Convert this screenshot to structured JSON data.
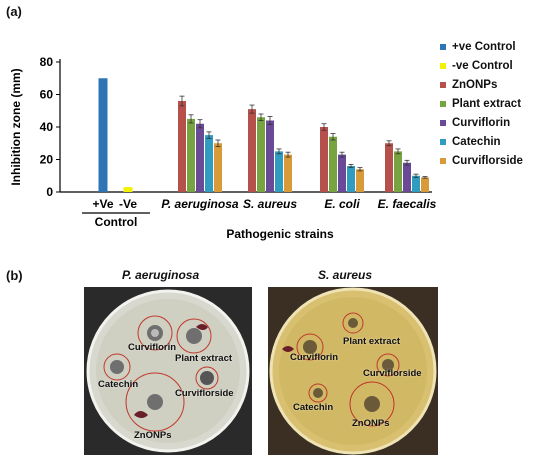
{
  "panel_a_label": "(a)",
  "panel_b_label": "(b)",
  "chart_data": {
    "type": "bar",
    "ylabel": "Inhibition zone (mm)",
    "xlabel": "Pathogenic strains",
    "ylim": [
      0,
      80
    ],
    "yticks": [
      0,
      20,
      40,
      60,
      80
    ],
    "control_group_label": "Control",
    "groups": [
      {
        "label": "+Ve",
        "italic": false,
        "values": {
          "+ve Control": 70
        }
      },
      {
        "label": "-Ve",
        "italic": false,
        "values": {
          "-ve Control": 3
        }
      },
      {
        "label": "P. aeruginosa",
        "italic": true,
        "values": {
          "ZnONPs": 56,
          "Plant extract": 45,
          "Curviflorin": 42,
          "Catechin": 35,
          "Curviflorside": 30
        },
        "errors": {
          "ZnONPs": 3,
          "Plant extract": 2.5,
          "Curviflorin": 2.5,
          "Catechin": 2,
          "Curviflorside": 2
        }
      },
      {
        "label": "S. aureus",
        "italic": true,
        "values": {
          "ZnONPs": 51,
          "Plant extract": 46,
          "Curviflorin": 44,
          "Catechin": 25,
          "Curviflorside": 23
        },
        "errors": {
          "ZnONPs": 2.5,
          "Plant extract": 2,
          "Curviflorin": 2.5,
          "Catechin": 1.5,
          "Curviflorside": 1.5
        }
      },
      {
        "label": "E. coli",
        "italic": true,
        "values": {
          "ZnONPs": 40,
          "Plant extract": 34,
          "Curviflorin": 23,
          "Catechin": 16,
          "Curviflorside": 14
        },
        "errors": {
          "ZnONPs": 2,
          "Plant extract": 2,
          "Curviflorin": 1.5,
          "Catechin": 1,
          "Curviflorside": 1
        }
      },
      {
        "label": "E. faecalis",
        "italic": true,
        "values": {
          "ZnONPs": 30,
          "Plant extract": 25,
          "Curviflorin": 18,
          "Catechin": 10,
          "Curviflorside": 9
        },
        "errors": {
          "ZnONPs": 1.5,
          "Plant extract": 1.5,
          "Curviflorin": 1.5,
          "Catechin": 1,
          "Curviflorside": 0.5
        }
      }
    ],
    "series": [
      {
        "name": "+ve Control",
        "color": "#2e75b6"
      },
      {
        "name": "-ve Control",
        "color": "#f2f200"
      },
      {
        "name": "ZnONPs",
        "color": "#b5504b"
      },
      {
        "name": "Plant extract",
        "color": "#77a340"
      },
      {
        "name": "Curviflorin",
        "color": "#6a4a96"
      },
      {
        "name": "Catechin",
        "color": "#2f9cc0"
      },
      {
        "name": "Curviflorside",
        "color": "#d99a3a"
      }
    ],
    "legend_position": "right",
    "grid": false
  },
  "photos": [
    {
      "title": "P. aeruginosa",
      "labels": [
        "Curviflorin",
        "Plant extract",
        "Catechin",
        "Curviflorside",
        "ZnONPs"
      ]
    },
    {
      "title": "S. aureus",
      "labels": [
        "Plant extract",
        "Curviflorin",
        "Curviflorside",
        "Catechin",
        "ZnONPs"
      ]
    }
  ]
}
